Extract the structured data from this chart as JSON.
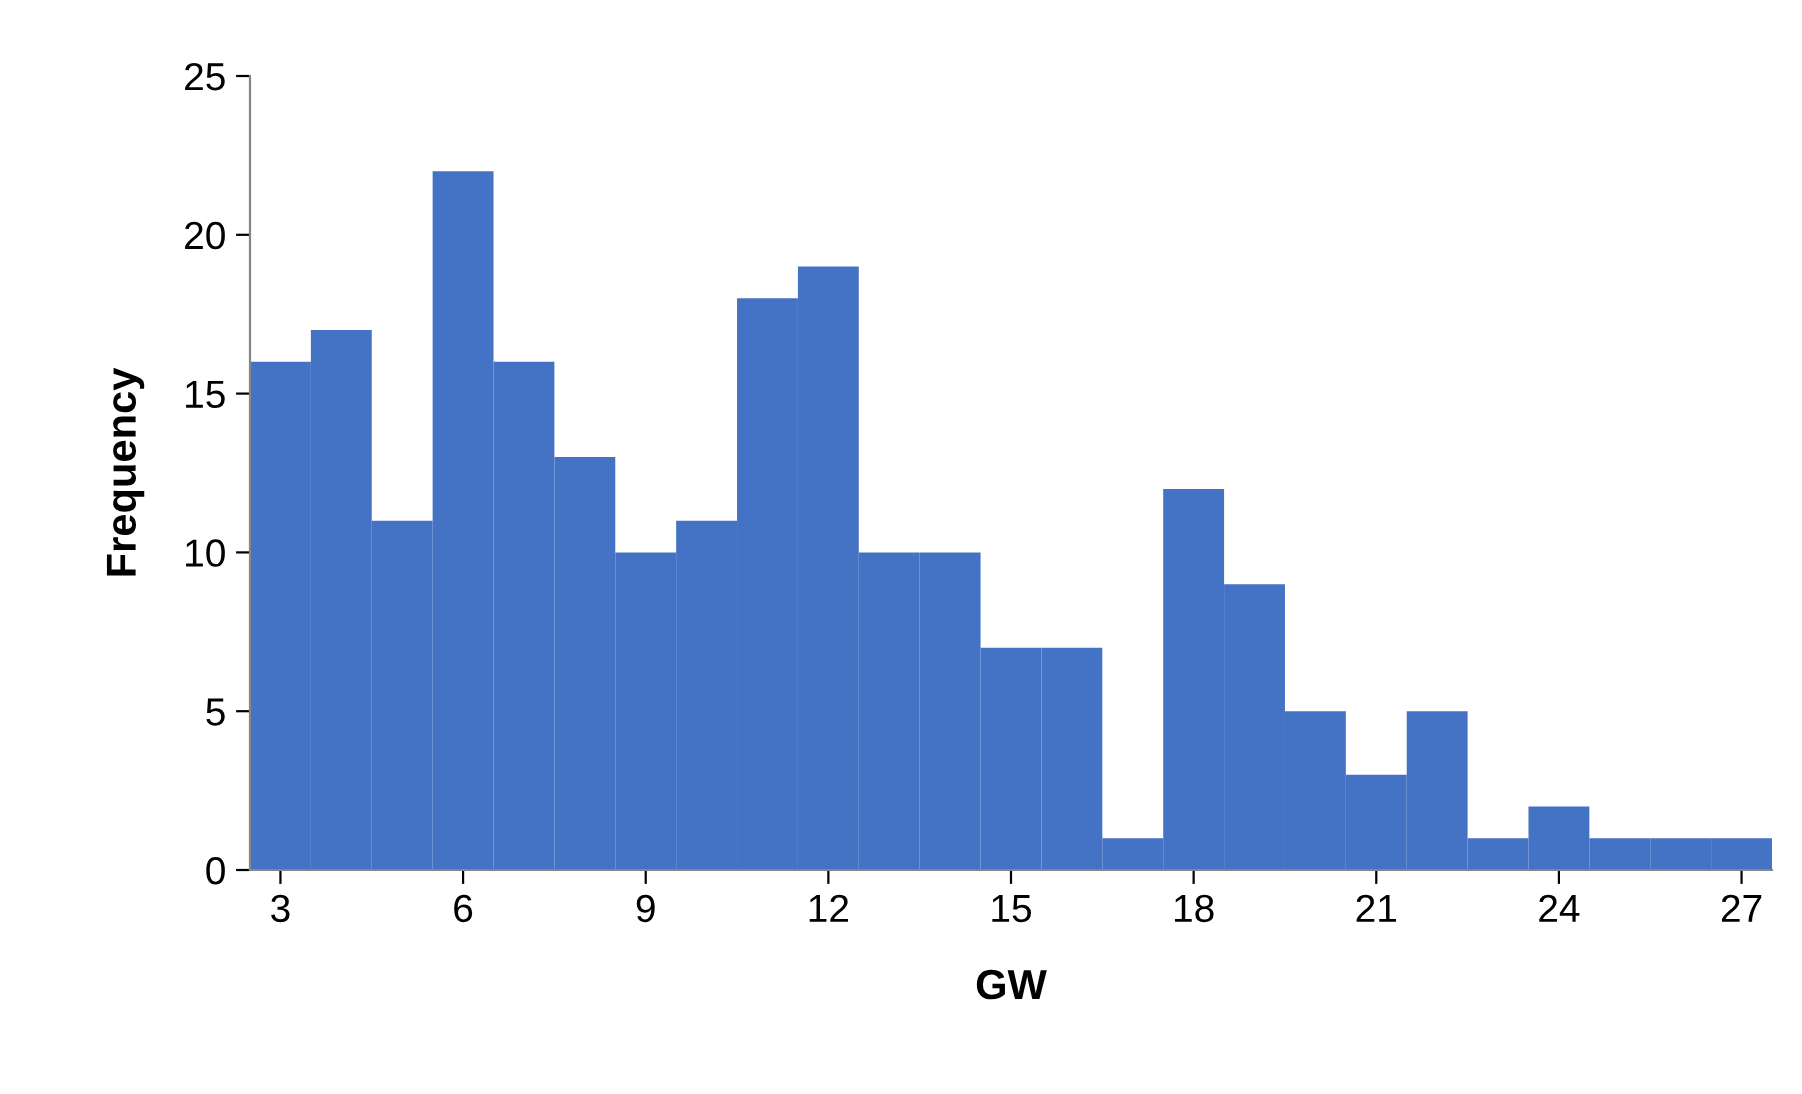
{
  "chart_data": {
    "type": "histogram",
    "xlabel": "GW",
    "ylabel": "Frequency",
    "bins": [
      2.5,
      3.5,
      4.5,
      5.5,
      6.5,
      7.5,
      8.5,
      9.5,
      10.5,
      11.5,
      12.5,
      13.5,
      14.5,
      15.5,
      16.5,
      17.5,
      18.5,
      19.5,
      20.5,
      21.5,
      22.5,
      23.5,
      24.5,
      25.5,
      26.5,
      27.5
    ],
    "values": [
      16,
      17,
      11,
      22,
      16,
      13,
      10,
      11,
      18,
      19,
      10,
      10,
      7,
      7,
      1,
      12,
      9,
      5,
      3,
      5,
      1,
      2,
      1,
      1,
      1
    ],
    "color": "#4472c4",
    "xlim": [
      2.5,
      27.5
    ],
    "xticks": [
      3,
      6,
      9,
      12,
      15,
      18,
      21,
      24,
      27
    ],
    "ylim": [
      0,
      25
    ],
    "yticks": [
      0,
      5,
      10,
      15,
      20,
      25
    ],
    "grid": false,
    "legend": false
  }
}
